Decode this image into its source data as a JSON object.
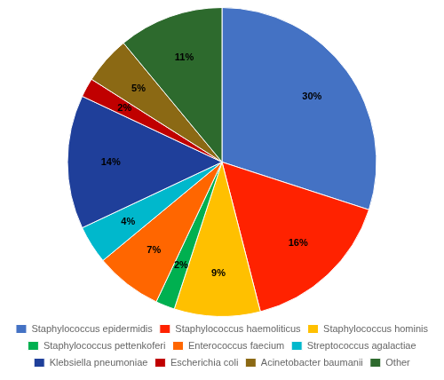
{
  "chart_data": {
    "type": "pie",
    "categories": [
      "Staphylococcus epidermidis",
      "Staphylococcus haemoliticus",
      "Staphylococcus hominis",
      "Staphylococcus pettenkoferi",
      "Enterococcus faecium",
      "Streptococcus agalactiae",
      "Klebsiella pneumoniae",
      "Escherichia coli",
      "Acinetobacter baumanii",
      "Other"
    ],
    "values": [
      30,
      16,
      9,
      2,
      7,
      4,
      14,
      2,
      5,
      11
    ],
    "value_labels": [
      "30%",
      "16%",
      "9%",
      "2%",
      "7%",
      "4%",
      "14%",
      "2%",
      "5%",
      "11%"
    ],
    "colors": [
      "#4472C4",
      "#FF2200",
      "#FFC000",
      "#00B050",
      "#FF6600",
      "#00B8CC",
      "#1F3F9A",
      "#C00000",
      "#8B6914",
      "#2D6A2D"
    ],
    "data_labels": true,
    "legend": "bottom"
  }
}
